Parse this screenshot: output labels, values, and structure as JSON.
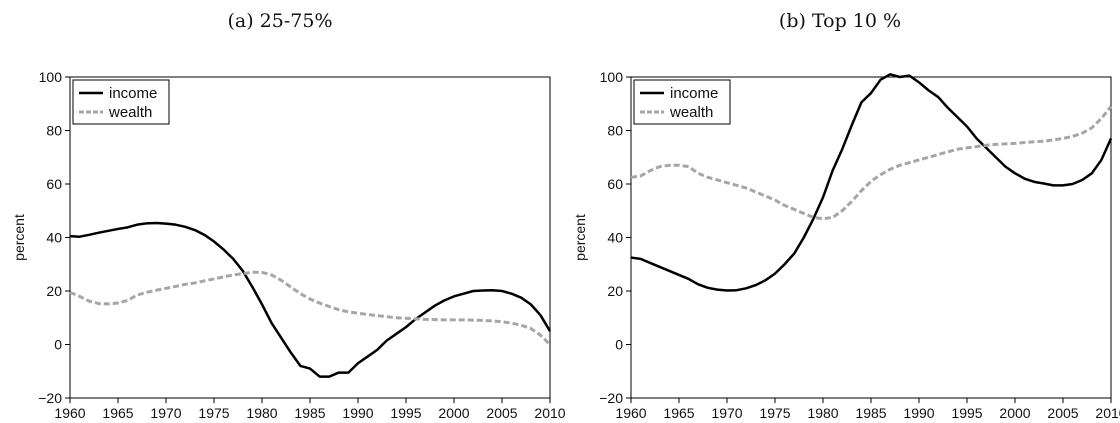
{
  "chart_data": [
    {
      "type": "line",
      "title": "(a) 25-75%",
      "xlabel": "",
      "ylabel": "percent",
      "xlim": [
        1960,
        2010
      ],
      "ylim": [
        -20,
        100
      ],
      "xticks": [
        1960,
        1965,
        1970,
        1975,
        1980,
        1985,
        1990,
        1995,
        2000,
        2005,
        2010
      ],
      "yticks": [
        -20,
        0,
        20,
        40,
        60,
        80,
        100
      ],
      "grid": false,
      "legend": "top-left",
      "series": [
        {
          "name": "income",
          "style": "solid",
          "color": "#000000",
          "x": [
            1960,
            1961,
            1962,
            1963,
            1964,
            1965,
            1966,
            1967,
            1968,
            1969,
            1970,
            1971,
            1972,
            1973,
            1974,
            1975,
            1976,
            1977,
            1978,
            1979,
            1980,
            1981,
            1982,
            1983,
            1984,
            1985,
            1986,
            1987,
            1988,
            1989,
            1990,
            1991,
            1992,
            1993,
            1994,
            1995,
            1996,
            1997,
            1998,
            1999,
            2000,
            2001,
            2002,
            2003,
            2004,
            2005,
            2006,
            2007,
            2008,
            2009,
            2010
          ],
          "y": [
            40.5,
            40.3,
            41,
            41.8,
            42.5,
            43.2,
            43.8,
            44.8,
            45.3,
            45.4,
            45.2,
            44.8,
            44,
            42.8,
            41,
            38.5,
            35.5,
            32,
            27.5,
            21.5,
            15,
            8,
            2.5,
            -3,
            -8,
            -9,
            -12,
            -12,
            -10.5,
            -10.5,
            -7,
            -4.5,
            -2,
            1.5,
            4,
            6.5,
            9.5,
            12,
            14.5,
            16.5,
            18,
            19,
            20,
            20.2,
            20.3,
            20,
            19,
            17.5,
            15,
            11,
            5
          ]
        },
        {
          "name": "wealth",
          "style": "dashed",
          "color": "#a6a6a6",
          "x": [
            1960,
            1961,
            1962,
            1963,
            1964,
            1965,
            1966,
            1967,
            1968,
            1969,
            1970,
            1971,
            1972,
            1973,
            1974,
            1975,
            1976,
            1977,
            1978,
            1979,
            1980,
            1981,
            1982,
            1983,
            1984,
            1985,
            1986,
            1987,
            1988,
            1989,
            1990,
            1991,
            1992,
            1993,
            1994,
            1995,
            1996,
            1997,
            1998,
            1999,
            2000,
            2001,
            2002,
            2003,
            2004,
            2005,
            2006,
            2007,
            2008,
            2009,
            2010
          ],
          "y": [
            19.5,
            18,
            16.2,
            15.3,
            15.2,
            15.5,
            16.5,
            18.5,
            19.5,
            20.3,
            21,
            21.7,
            22.5,
            23,
            23.8,
            24.5,
            25.3,
            26,
            26.5,
            27,
            27,
            26,
            24,
            21.5,
            19,
            17,
            15.5,
            14.2,
            13,
            12.2,
            11.7,
            11.2,
            10.8,
            10.4,
            10,
            9.8,
            9.6,
            9.4,
            9.3,
            9.2,
            9.2,
            9.2,
            9.1,
            9,
            8.8,
            8.5,
            8,
            7.2,
            6,
            3.5,
            0
          ]
        }
      ]
    },
    {
      "type": "line",
      "title": "(b) Top 10 %",
      "xlabel": "",
      "ylabel": "percent",
      "xlim": [
        1960,
        2010
      ],
      "ylim": [
        -20,
        100
      ],
      "xticks": [
        1960,
        1965,
        1970,
        1975,
        1980,
        1985,
        1990,
        1995,
        2000,
        2005,
        2010
      ],
      "yticks": [
        -20,
        0,
        20,
        40,
        60,
        80,
        100
      ],
      "grid": false,
      "legend": "top-left",
      "series": [
        {
          "name": "income",
          "style": "solid",
          "color": "#000000",
          "x": [
            1960,
            1961,
            1962,
            1963,
            1964,
            1965,
            1966,
            1967,
            1968,
            1969,
            1970,
            1971,
            1972,
            1973,
            1974,
            1975,
            1976,
            1977,
            1978,
            1979,
            1980,
            1981,
            1982,
            1983,
            1984,
            1985,
            1986,
            1987,
            1988,
            1989,
            1990,
            1991,
            1992,
            1993,
            1994,
            1995,
            1996,
            1997,
            1998,
            1999,
            2000,
            2001,
            2002,
            2003,
            2004,
            2005,
            2006,
            2007,
            2008,
            2009,
            2010
          ],
          "y": [
            32.5,
            32,
            30.5,
            29,
            27.5,
            26,
            24.5,
            22.5,
            21.2,
            20.5,
            20.2,
            20.3,
            21,
            22.2,
            24,
            26.5,
            30,
            34,
            40,
            47,
            55,
            65,
            73,
            82,
            90.5,
            94,
            99,
            101,
            100,
            100.5,
            98,
            95,
            92.5,
            88.5,
            85,
            81.5,
            77,
            73.5,
            70,
            66.5,
            64,
            62,
            60.8,
            60.2,
            59.5,
            59.5,
            60,
            61.5,
            64,
            69,
            77
          ]
        },
        {
          "name": "wealth",
          "style": "dashed",
          "color": "#a6a6a6",
          "x": [
            1960,
            1961,
            1962,
            1963,
            1964,
            1965,
            1966,
            1967,
            1968,
            1969,
            1970,
            1971,
            1972,
            1973,
            1974,
            1975,
            1976,
            1977,
            1978,
            1979,
            1980,
            1981,
            1982,
            1983,
            1984,
            1985,
            1986,
            1987,
            1988,
            1989,
            1990,
            1991,
            1992,
            1993,
            1994,
            1995,
            1996,
            1997,
            1998,
            1999,
            2000,
            2001,
            2002,
            2003,
            2004,
            2005,
            2006,
            2007,
            2008,
            2009,
            2010
          ],
          "y": [
            62.5,
            63,
            65,
            66.5,
            67,
            67,
            66.5,
            64,
            62.5,
            61.5,
            60.5,
            59.5,
            58.5,
            57,
            55.5,
            54,
            52,
            50.5,
            49,
            47.5,
            47,
            47.5,
            50,
            53.5,
            57.5,
            61,
            63.5,
            65.5,
            67,
            68,
            69,
            70,
            71,
            72,
            73,
            73.5,
            74,
            74.5,
            74.8,
            75,
            75.2,
            75.5,
            75.8,
            76,
            76.5,
            77,
            77.8,
            79,
            81,
            84.5,
            89
          ]
        }
      ]
    }
  ]
}
